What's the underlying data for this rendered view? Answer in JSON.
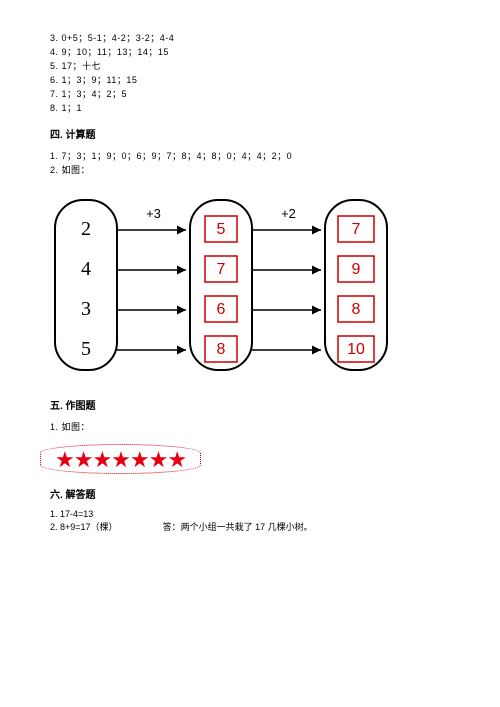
{
  "answers": {
    "line3": "3. 0+5；5-1；4-2；3-2；4-4",
    "line4": "4. 9；10；11；13；14；15",
    "line5": "5. 17；十七",
    "line6": "6. 1；3；9；11；15",
    "line7": "7. 1；3；4；2；5",
    "line8": "8. 1；1"
  },
  "section4": {
    "title": "四. 计算题",
    "line1": "1. 7；3；1；9；0；6；9；7；8；4；8；0；4；4；2；0",
    "line2": "2. 如图："
  },
  "flow": {
    "inputs": [
      "2",
      "4",
      "3",
      "5"
    ],
    "op1": "+3",
    "mid": [
      "5",
      "7",
      "6",
      "8"
    ],
    "op2": "+2",
    "out": [
      "7",
      "9",
      "8",
      "10"
    ],
    "colors": {
      "pill_fill": "#ffffff",
      "pill_stroke": "#000000",
      "box_stroke": "#cc0000",
      "box_text": "#cc0000",
      "arrow": "#000000",
      "input_text": "#000000",
      "op_text": "#000000"
    },
    "font_size_input": 20,
    "font_size_mid": 16,
    "font_size_op": 13
  },
  "section5": {
    "title": "五. 作图题",
    "line1": "1. 如图：",
    "star_count": 7,
    "star_char": "★",
    "star_color": "#e60012"
  },
  "section6": {
    "title": "六. 解答题",
    "line1": "1. 17-4=13",
    "line2_left": "2. 8+9=17（棵）",
    "line2_right": "答：两个小组一共栽了 17 几棵小树。"
  }
}
